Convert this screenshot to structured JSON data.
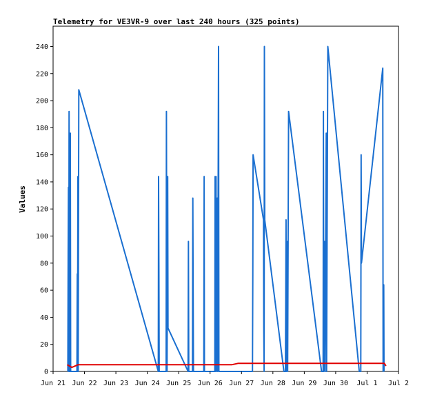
{
  "chart_data": {
    "type": "line",
    "title": "Telemetry for VE3VR-9 over last 240 hours (325 points)",
    "xlabel": "",
    "ylabel": "Values",
    "ylim": [
      0,
      255
    ],
    "xlim": [
      0,
      11
    ],
    "x_ticks": [
      {
        "x": 0,
        "label": "Jun 21"
      },
      {
        "x": 1,
        "label": "Jun 22"
      },
      {
        "x": 2,
        "label": "Jun 23"
      },
      {
        "x": 3,
        "label": "Jun 24"
      },
      {
        "x": 4,
        "label": "Jun 25"
      },
      {
        "x": 5,
        "label": "Jun 26"
      },
      {
        "x": 6,
        "label": "Jun 27"
      },
      {
        "x": 7,
        "label": "Jun 28"
      },
      {
        "x": 8,
        "label": "Jun 29"
      },
      {
        "x": 9,
        "label": "Jun 30"
      },
      {
        "x": 10,
        "label": "Jul 1"
      },
      {
        "x": 11,
        "label": "Jul 2"
      }
    ],
    "y_ticks": [
      0,
      20,
      40,
      60,
      80,
      100,
      120,
      140,
      160,
      180,
      200,
      220,
      240
    ],
    "grid": false,
    "series": [
      {
        "color": "#1a6fd0",
        "points": [
          [
            0.47,
            0
          ],
          [
            0.48,
            88
          ],
          [
            0.49,
            136
          ],
          [
            0.5,
            0
          ],
          [
            0.51,
            192
          ],
          [
            0.52,
            80
          ],
          [
            0.53,
            0
          ],
          [
            0.55,
            176
          ],
          [
            0.56,
            0
          ],
          [
            0.76,
            0
          ],
          [
            0.77,
            72
          ],
          [
            0.78,
            0
          ],
          [
            0.79,
            144
          ],
          [
            0.8,
            0
          ],
          [
            0.82,
            208
          ],
          [
            3.35,
            0
          ],
          [
            3.36,
            144
          ],
          [
            3.37,
            72
          ],
          [
            3.38,
            0
          ],
          [
            3.6,
            0
          ],
          [
            3.61,
            192
          ],
          [
            3.62,
            32
          ],
          [
            3.63,
            0
          ],
          [
            3.65,
            144
          ],
          [
            3.66,
            32
          ],
          [
            4.3,
            0
          ],
          [
            4.31,
            96
          ],
          [
            4.32,
            0
          ],
          [
            4.44,
            0
          ],
          [
            4.45,
            128
          ],
          [
            4.46,
            64
          ],
          [
            4.47,
            0
          ],
          [
            4.8,
            0
          ],
          [
            4.81,
            144
          ],
          [
            4.82,
            0
          ],
          [
            5.15,
            0
          ],
          [
            5.16,
            144
          ],
          [
            5.17,
            0
          ],
          [
            5.19,
            144
          ],
          [
            5.2,
            0
          ],
          [
            5.23,
            128
          ],
          [
            5.24,
            0
          ],
          [
            5.27,
            240
          ],
          [
            5.28,
            0
          ],
          [
            6.35,
            0
          ],
          [
            6.36,
            72
          ],
          [
            6.37,
            160
          ],
          [
            6.7,
            112
          ],
          [
            6.71,
            32
          ],
          [
            6.72,
            0
          ],
          [
            6.73,
            240
          ],
          [
            6.74,
            112
          ],
          [
            7.35,
            0
          ],
          [
            7.4,
            0
          ],
          [
            7.41,
            56
          ],
          [
            7.42,
            112
          ],
          [
            7.43,
            0
          ],
          [
            7.46,
            96
          ],
          [
            7.47,
            0
          ],
          [
            7.5,
            192
          ],
          [
            8.55,
            0
          ],
          [
            8.6,
            0
          ],
          [
            8.61,
            192
          ],
          [
            8.62,
            0
          ],
          [
            8.65,
            96
          ],
          [
            8.66,
            0
          ],
          [
            8.7,
            176
          ],
          [
            8.71,
            0
          ],
          [
            8.75,
            240
          ],
          [
            9.75,
            0
          ],
          [
            9.8,
            0
          ],
          [
            9.81,
            160
          ],
          [
            9.82,
            80
          ],
          [
            10.5,
            224
          ],
          [
            10.51,
            0
          ],
          [
            10.53,
            64
          ],
          [
            10.54,
            0
          ]
        ]
      },
      {
        "color": "#e00000",
        "points": [
          [
            0.45,
            5
          ],
          [
            0.6,
            3
          ],
          [
            0.8,
            5
          ],
          [
            5.7,
            5
          ],
          [
            5.9,
            6
          ],
          [
            10.55,
            6
          ],
          [
            10.6,
            4
          ]
        ]
      }
    ]
  }
}
